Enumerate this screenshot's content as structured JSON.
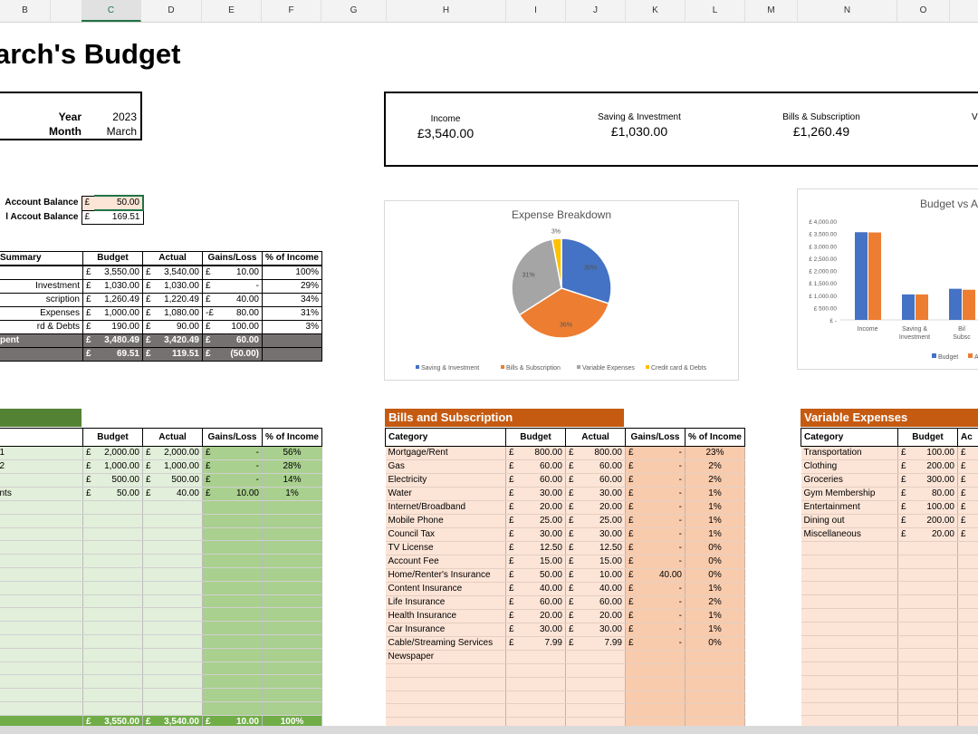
{
  "columns": [
    "B",
    "C",
    "D",
    "E",
    "F",
    "G",
    "H",
    "I",
    "J",
    "K",
    "L",
    "M",
    "N",
    "O"
  ],
  "title": "arch's Budget",
  "period": {
    "year_label": "Year",
    "year": "2023",
    "month_label": "Month",
    "month": "March"
  },
  "balances": [
    {
      "label": "Account Balance",
      "cur": "£",
      "value": "50.00"
    },
    {
      "label": "l Accout Balance",
      "cur": "£",
      "value": "169.51"
    }
  ],
  "kpis": [
    {
      "label": "Income",
      "value": "£3,540.00"
    },
    {
      "label": "Saving & Investment",
      "value": "£1,030.00"
    },
    {
      "label": "Bills & Subscription",
      "value": "£1,260.49"
    },
    {
      "label": "V",
      "value": ""
    }
  ],
  "summary": {
    "headers": [
      "Summary",
      "Budget",
      "Actual",
      "Gains/Loss",
      "% of  Income"
    ],
    "rows": [
      {
        "name": "",
        "b": "3,550.00",
        "a": "3,540.00",
        "gs": "£",
        "g": "10.00",
        "p": "100%"
      },
      {
        "name": "Investment",
        "b": "1,030.00",
        "a": "1,030.00",
        "gs": "£",
        "g": "-",
        "p": "29%"
      },
      {
        "name": "scription",
        "b": "1,260.49",
        "a": "1,220.49",
        "gs": "£",
        "g": "40.00",
        "p": "34%"
      },
      {
        "name": "Expenses",
        "b": "1,000.00",
        "a": "1,080.00",
        "gs": "-£",
        "g": "80.00",
        "p": "31%"
      },
      {
        "name": "rd & Debts",
        "b": "190.00",
        "a": "90.00",
        "gs": "£",
        "g": "100.00",
        "p": "3%"
      }
    ],
    "totals": [
      {
        "name": "pent",
        "b": "3,480.49",
        "a": "3,420.49",
        "g": "60.00"
      },
      {
        "name": "",
        "b": "69.51",
        "a": "119.51",
        "g": "(50.00)"
      }
    ]
  },
  "pie": {
    "title": "Expense Breakdown",
    "slices": [
      {
        "label": "Saving & Investment",
        "value": 30,
        "pct": "30%",
        "color": "#4472c4"
      },
      {
        "label": "Bills & Subscription",
        "value": 36,
        "pct": "36%",
        "color": "#ed7d31"
      },
      {
        "label": "Variable Expenses",
        "value": 31,
        "pct": "31%",
        "color": "#a5a5a5"
      },
      {
        "label": "Credit card & Debts",
        "value": 3,
        "pct": "3%",
        "color": "#ffc000"
      }
    ]
  },
  "chart_data": {
    "type": "bar",
    "title": "Budget vs A",
    "categories": [
      "Income",
      "Saving &\nInvestment",
      "Bil\nSubsc"
    ],
    "series": [
      {
        "name": "Budget",
        "values": [
          3550,
          1030,
          1260.49
        ],
        "color": "#4472c4"
      },
      {
        "name": "A",
        "values": [
          3540,
          1030,
          1220.49
        ],
        "color": "#ed7d31"
      }
    ],
    "yticks": [
      "£ 4,000.00",
      "£ 3,500.00",
      "£ 3,000.00",
      "£ 2,500.00",
      "£ 2,000.00",
      "£ 1,500.00",
      "£ 1,000.00",
      "£ 500.00",
      "£ -"
    ],
    "ylim": [
      0,
      4000
    ]
  },
  "income": {
    "headers": [
      "",
      "Budget",
      "Actual",
      "Gains/Loss",
      "% of  Income"
    ],
    "rows": [
      {
        "name": "1",
        "b": "2,000.00",
        "a": "2,000.00",
        "g": "-",
        "p": "56%"
      },
      {
        "name": "2",
        "b": "1,000.00",
        "a": "1,000.00",
        "g": "-",
        "p": "28%"
      },
      {
        "name": "",
        "b": "500.00",
        "a": "500.00",
        "g": "-",
        "p": "14%"
      },
      {
        "name": "nts",
        "b": "50.00",
        "a": "40.00",
        "g": "10.00",
        "p": "1%"
      }
    ],
    "total": {
      "b": "3,550.00",
      "a": "3,540.00",
      "g": "10.00",
      "p": "100%"
    }
  },
  "bills": {
    "title": "Bills and Subscription",
    "headers": [
      "Category",
      "Budget",
      "Actual",
      "Gains/Loss",
      "% of  Income"
    ],
    "rows": [
      {
        "name": "Mortgage/Rent",
        "b": "800.00",
        "a": "800.00",
        "g": "-",
        "p": "23%"
      },
      {
        "name": "Gas",
        "b": "60.00",
        "a": "60.00",
        "g": "-",
        "p": "2%"
      },
      {
        "name": "Electricity",
        "b": "60.00",
        "a": "60.00",
        "g": "-",
        "p": "2%"
      },
      {
        "name": "Water",
        "b": "30.00",
        "a": "30.00",
        "g": "-",
        "p": "1%"
      },
      {
        "name": "Internet/Broadband",
        "b": "20.00",
        "a": "20.00",
        "g": "-",
        "p": "1%"
      },
      {
        "name": "Mobile Phone",
        "b": "25.00",
        "a": "25.00",
        "g": "-",
        "p": "1%"
      },
      {
        "name": "Council Tax",
        "b": "30.00",
        "a": "30.00",
        "g": "-",
        "p": "1%"
      },
      {
        "name": "TV License",
        "b": "12.50",
        "a": "12.50",
        "g": "-",
        "p": "0%"
      },
      {
        "name": "Account Fee",
        "b": "15.00",
        "a": "15.00",
        "g": "-",
        "p": "0%"
      },
      {
        "name": "Home/Renter's Insurance",
        "b": "50.00",
        "a": "10.00",
        "g": "40.00",
        "p": "0%"
      },
      {
        "name": "Content Insurance",
        "b": "40.00",
        "a": "40.00",
        "g": "-",
        "p": "1%"
      },
      {
        "name": "Life Insurance",
        "b": "60.00",
        "a": "60.00",
        "g": "-",
        "p": "2%"
      },
      {
        "name": "Health Insurance",
        "b": "20.00",
        "a": "20.00",
        "g": "-",
        "p": "1%"
      },
      {
        "name": "Car Insurance",
        "b": "30.00",
        "a": "30.00",
        "g": "-",
        "p": "1%"
      },
      {
        "name": "Cable/Streaming Services",
        "b": "7.99",
        "a": "7.99",
        "g": "-",
        "p": "0%"
      },
      {
        "name": "Newspaper",
        "b": "",
        "a": "",
        "g": "",
        "p": ""
      }
    ]
  },
  "variable": {
    "title": "Variable Expenses",
    "headers": [
      "Category",
      "Budget",
      "Ac"
    ],
    "rows": [
      {
        "name": "Transportation",
        "b": "100.00"
      },
      {
        "name": "Clothing",
        "b": "200.00"
      },
      {
        "name": "Groceries",
        "b": "300.00"
      },
      {
        "name": "Gym Membership",
        "b": "80.00"
      },
      {
        "name": "Entertainment",
        "b": "100.00"
      },
      {
        "name": "Dining out",
        "b": "200.00"
      },
      {
        "name": "Miscellaneous",
        "b": "20.00"
      }
    ]
  },
  "currency": "£"
}
